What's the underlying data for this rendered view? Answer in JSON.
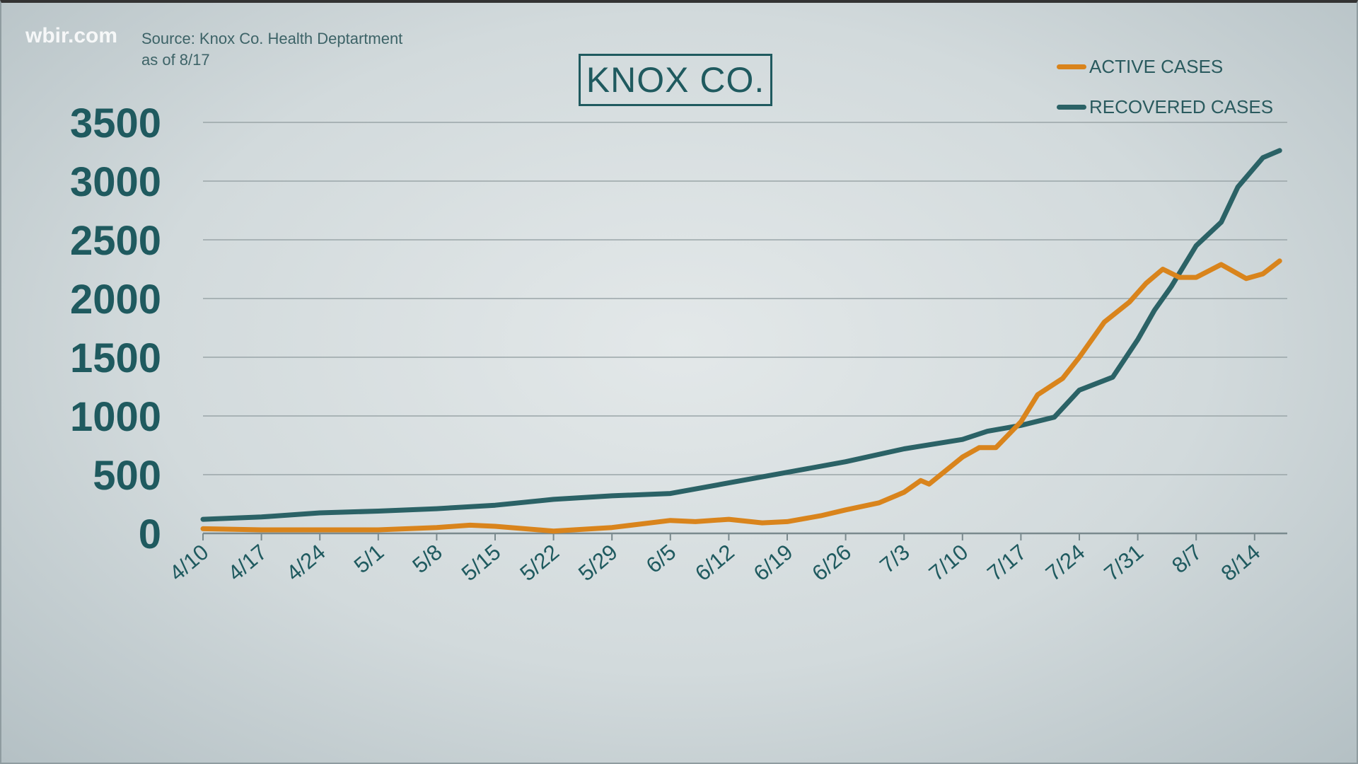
{
  "watermark": "wbir.com",
  "source_line1": "Source: Knox Co. Health Deptartment",
  "source_line2": "as of 8/17",
  "chart_data": {
    "type": "line",
    "title": "KNOX CO.",
    "xlabel": "",
    "ylabel": "",
    "ylim": [
      0,
      3500
    ],
    "yticks": [
      "0",
      "500",
      "1000",
      "1500",
      "2000",
      "2500",
      "3000",
      "3500"
    ],
    "xticks": [
      "4/10",
      "4/17",
      "4/24",
      "5/1",
      "5/8",
      "5/15",
      "5/22",
      "5/29",
      "6/5",
      "6/12",
      "6/19",
      "6/26",
      "7/3",
      "7/10",
      "7/17",
      "7/24",
      "7/31",
      "8/7",
      "8/14"
    ],
    "grid": true,
    "legend_position": "top-right",
    "series": [
      {
        "name": "ACTIVE CASES",
        "color": "#d9841c",
        "x": [
          "4/10",
          "4/17",
          "4/24",
          "5/1",
          "5/8",
          "5/12",
          "5/15",
          "5/22",
          "5/29",
          "6/5",
          "6/8",
          "6/12",
          "6/16",
          "6/19",
          "6/23",
          "6/26",
          "6/30",
          "7/3",
          "7/5",
          "7/6",
          "7/10",
          "7/12",
          "7/14",
          "7/17",
          "7/19",
          "7/22",
          "7/24",
          "7/27",
          "7/30",
          "8/1",
          "8/3",
          "8/5",
          "8/7",
          "8/10",
          "8/13",
          "8/15",
          "8/17"
        ],
        "values": [
          40,
          30,
          30,
          30,
          50,
          70,
          60,
          20,
          50,
          110,
          100,
          120,
          90,
          100,
          150,
          200,
          260,
          350,
          450,
          420,
          650,
          730,
          730,
          950,
          1180,
          1320,
          1500,
          1800,
          1970,
          2130,
          2250,
          2180,
          2180,
          2290,
          2170,
          2210,
          2320
        ]
      },
      {
        "name": "RECOVERED CASES",
        "color": "#2b6266",
        "x": [
          "4/10",
          "4/17",
          "4/24",
          "5/1",
          "5/8",
          "5/15",
          "5/22",
          "5/29",
          "6/5",
          "6/12",
          "6/19",
          "6/26",
          "7/3",
          "7/10",
          "7/13",
          "7/17",
          "7/21",
          "7/24",
          "7/28",
          "7/31",
          "8/2",
          "8/4",
          "8/7",
          "8/10",
          "8/12",
          "8/15",
          "8/17"
        ],
        "values": [
          120,
          140,
          175,
          190,
          210,
          240,
          290,
          320,
          340,
          430,
          520,
          610,
          720,
          800,
          870,
          920,
          990,
          1220,
          1330,
          1650,
          1900,
          2100,
          2450,
          2650,
          2950,
          3200,
          3260
        ]
      }
    ]
  }
}
